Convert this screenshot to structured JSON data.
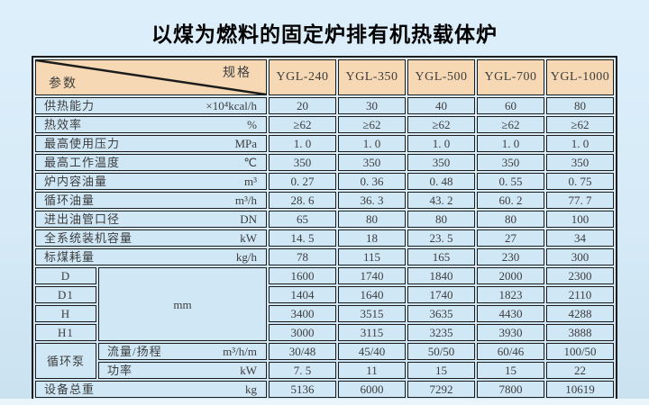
{
  "page": {
    "title": "以煤为燃料的固定炉排有机热载体炉"
  },
  "table": {
    "corner": {
      "top_right_label": "规格",
      "bottom_left_label": "参数"
    },
    "models": [
      "YGL-240",
      "YGL-350",
      "YGL-500",
      "YGL-700",
      "YGL-1000"
    ],
    "dimension_unit": "mm",
    "rows": [
      {
        "kind": "full",
        "label": "供热能力",
        "unit": "×10⁴kcal/h",
        "values": [
          "20",
          "30",
          "40",
          "60",
          "80"
        ]
      },
      {
        "kind": "full",
        "label": "热效率",
        "unit": "%",
        "values": [
          "≥62",
          "≥62",
          "≥62",
          "≥62",
          "≥62"
        ]
      },
      {
        "kind": "full",
        "label": "最高使用压力",
        "unit": "MPa",
        "values": [
          "1. 0",
          "1. 0",
          "1. 0",
          "1. 0",
          "1. 0"
        ]
      },
      {
        "kind": "full",
        "label": "最高工作温度",
        "unit": "℃",
        "values": [
          "350",
          "350",
          "350",
          "350",
          "350"
        ]
      },
      {
        "kind": "full",
        "label": "炉内容油量",
        "unit": "m³",
        "values": [
          "0. 27",
          "0. 36",
          "0. 48",
          "0. 55",
          "0. 75"
        ]
      },
      {
        "kind": "full",
        "label": "循环油量",
        "unit": "m³/h",
        "values": [
          "28. 6",
          "36. 3",
          "43. 2",
          "60. 2",
          "77. 7"
        ]
      },
      {
        "kind": "full",
        "label": "进出油管口径",
        "unit": "DN",
        "values": [
          "65",
          "80",
          "80",
          "80",
          "100"
        ]
      },
      {
        "kind": "full",
        "label": "全系统装机容量",
        "unit": "kW",
        "values": [
          "14. 5",
          "18",
          "23. 5",
          "27",
          "34"
        ]
      },
      {
        "kind": "full",
        "label": "标煤耗量",
        "unit": "kg/h",
        "values": [
          "78",
          "115",
          "165",
          "230",
          "300"
        ]
      },
      {
        "kind": "dim-first",
        "label": "D",
        "values": [
          "1600",
          "1740",
          "1840",
          "2000",
          "2300"
        ]
      },
      {
        "kind": "dim",
        "label": "D1",
        "values": [
          "1404",
          "1640",
          "1740",
          "1823",
          "2110"
        ]
      },
      {
        "kind": "dim",
        "label": "H",
        "values": [
          "3400",
          "3515",
          "3635",
          "4430",
          "4288"
        ]
      },
      {
        "kind": "dim",
        "label": "H1",
        "values": [
          "3000",
          "3115",
          "3235",
          "3930",
          "3888"
        ]
      },
      {
        "kind": "pump-first",
        "group": "循环泵",
        "label": "流量/扬程",
        "unit": "m³/h/m",
        "values": [
          "30/48",
          "45/40",
          "50/50",
          "60/46",
          "100/50"
        ]
      },
      {
        "kind": "pump",
        "label": "功率",
        "unit": "kW",
        "values": [
          "7. 5",
          "11",
          "15",
          "15",
          "22"
        ]
      },
      {
        "kind": "full",
        "label": "设备总重",
        "unit": "kg",
        "values": [
          "5136",
          "6000",
          "7292",
          "7800",
          "10619"
        ]
      }
    ]
  },
  "colors": {
    "header_bg": "#f6d9b4",
    "cell_bg": "#d0e7f6",
    "border": "#1c1c1c",
    "page_top": "#ddeffb",
    "page_bottom": "#cbe2f1",
    "bottom_strip": "#eaf4fb",
    "text": "#3d3d3d"
  }
}
